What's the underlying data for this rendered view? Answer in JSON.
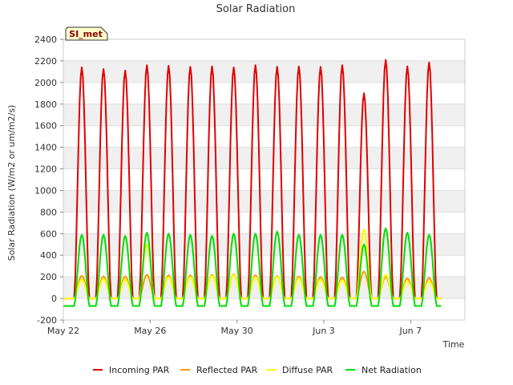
{
  "chart_data": {
    "type": "line",
    "title": "Solar Radiation",
    "xlabel": "Time",
    "ylabel": "Solar Radiation (W/m2 or um/m2/s)",
    "badge": "SI_met",
    "ylim": [
      -200,
      2400
    ],
    "yticks": [
      -200,
      0,
      200,
      400,
      600,
      800,
      1000,
      1200,
      1400,
      1600,
      1800,
      2000,
      2200,
      2400
    ],
    "xlim_days": [
      0,
      18.5
    ],
    "xticks": [
      {
        "day": 0,
        "label": "May 22"
      },
      {
        "day": 4,
        "label": "May 26"
      },
      {
        "day": 8,
        "label": "May 30"
      },
      {
        "day": 12,
        "label": "Jun 3"
      },
      {
        "day": 16,
        "label": "Jun 7"
      }
    ],
    "daily_peak_days": [
      0.85,
      1.85,
      2.85,
      3.85,
      4.85,
      5.85,
      6.85,
      7.85,
      8.85,
      9.85,
      10.85,
      11.85,
      12.85,
      13.85,
      14.85,
      15.85,
      16.85
    ],
    "series": [
      {
        "name": "Incoming PAR",
        "color": "#e00000",
        "values": [
          2140,
          2125,
          2110,
          2160,
          2155,
          2145,
          2150,
          2140,
          2160,
          2145,
          2150,
          2145,
          2160,
          1900,
          2210,
          2150,
          2185
        ]
      },
      {
        "name": "Reflected PAR",
        "color": "#ff9900",
        "values": [
          210,
          205,
          205,
          220,
          215,
          215,
          220,
          225,
          215,
          210,
          205,
          200,
          195,
          250,
          200,
          185,
          190
        ]
      },
      {
        "name": "Diffuse PAR",
        "color": "#ffff00",
        "values": [
          175,
          180,
          175,
          500,
          200,
          200,
          210,
          220,
          200,
          205,
          190,
          175,
          170,
          640,
          220,
          160,
          160
        ]
      },
      {
        "name": "Net Radiation",
        "color": "#00dd00",
        "values": [
          590,
          590,
          580,
          610,
          600,
          590,
          580,
          600,
          600,
          620,
          590,
          590,
          590,
          500,
          650,
          610,
          590
        ]
      }
    ],
    "night_values": {
      "Incoming PAR": 0,
      "Reflected PAR": 0,
      "Diffuse PAR": 0,
      "Net Radiation": -70
    }
  }
}
